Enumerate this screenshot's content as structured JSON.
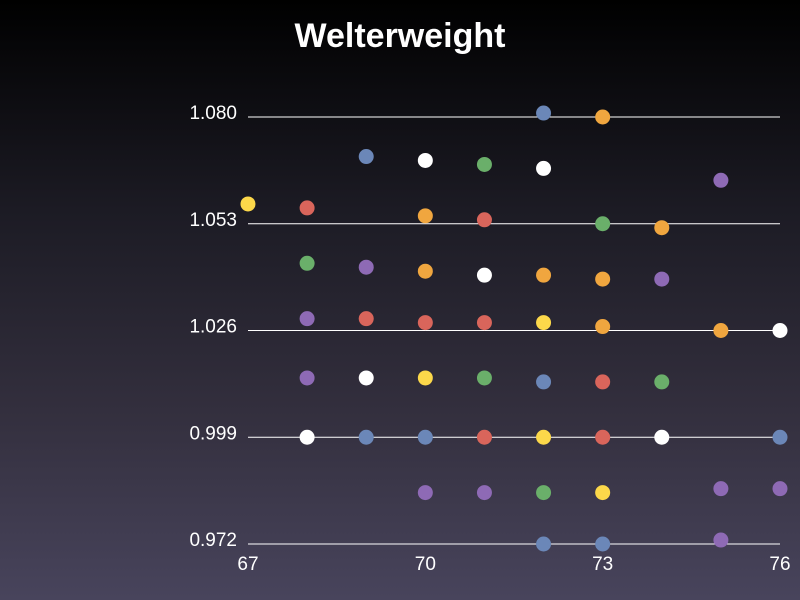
{
  "chart_data": {
    "type": "scatter",
    "title": "Welterweight",
    "xlabel": "",
    "ylabel": "",
    "xlim": [
      67,
      76
    ],
    "ylim": [
      0.972,
      1.08
    ],
    "x_ticks": [
      "67",
      "70",
      "73",
      "76"
    ],
    "y_ticks": [
      "1.080",
      "1.053",
      "1.026",
      "0.999",
      "0.972"
    ],
    "grid": "horizontal",
    "legend": "none",
    "colors": {
      "blue": "#6b87b8",
      "orange": "#f0a63f",
      "white": "#ffffff",
      "green": "#6aaf6a",
      "purple": "#8e6ab5",
      "yellow": "#fcd84a",
      "red": "#d9655b"
    },
    "points": [
      {
        "x": 72,
        "y": 1.081,
        "c": "blue"
      },
      {
        "x": 73,
        "y": 1.08,
        "c": "orange"
      },
      {
        "x": 69,
        "y": 1.07,
        "c": "blue"
      },
      {
        "x": 70,
        "y": 1.069,
        "c": "white"
      },
      {
        "x": 71,
        "y": 1.068,
        "c": "green"
      },
      {
        "x": 72,
        "y": 1.067,
        "c": "white"
      },
      {
        "x": 75,
        "y": 1.064,
        "c": "purple"
      },
      {
        "x": 67,
        "y": 1.058,
        "c": "yellow"
      },
      {
        "x": 68,
        "y": 1.057,
        "c": "red"
      },
      {
        "x": 70,
        "y": 1.055,
        "c": "orange"
      },
      {
        "x": 71,
        "y": 1.054,
        "c": "red"
      },
      {
        "x": 73,
        "y": 1.053,
        "c": "green"
      },
      {
        "x": 74,
        "y": 1.052,
        "c": "orange"
      },
      {
        "x": 68,
        "y": 1.043,
        "c": "green"
      },
      {
        "x": 69,
        "y": 1.042,
        "c": "purple"
      },
      {
        "x": 70,
        "y": 1.041,
        "c": "orange"
      },
      {
        "x": 71,
        "y": 1.04,
        "c": "white"
      },
      {
        "x": 72,
        "y": 1.04,
        "c": "orange"
      },
      {
        "x": 73,
        "y": 1.039,
        "c": "orange"
      },
      {
        "x": 74,
        "y": 1.039,
        "c": "purple"
      },
      {
        "x": 68,
        "y": 1.029,
        "c": "purple"
      },
      {
        "x": 69,
        "y": 1.029,
        "c": "red"
      },
      {
        "x": 70,
        "y": 1.028,
        "c": "red"
      },
      {
        "x": 71,
        "y": 1.028,
        "c": "red"
      },
      {
        "x": 72,
        "y": 1.028,
        "c": "yellow"
      },
      {
        "x": 73,
        "y": 1.027,
        "c": "orange"
      },
      {
        "x": 75,
        "y": 1.026,
        "c": "orange"
      },
      {
        "x": 76,
        "y": 1.026,
        "c": "white"
      },
      {
        "x": 68,
        "y": 1.014,
        "c": "purple"
      },
      {
        "x": 69,
        "y": 1.014,
        "c": "white"
      },
      {
        "x": 70,
        "y": 1.014,
        "c": "yellow"
      },
      {
        "x": 71,
        "y": 1.014,
        "c": "green"
      },
      {
        "x": 72,
        "y": 1.013,
        "c": "blue"
      },
      {
        "x": 73,
        "y": 1.013,
        "c": "red"
      },
      {
        "x": 74,
        "y": 1.013,
        "c": "green"
      },
      {
        "x": 68,
        "y": 0.999,
        "c": "white"
      },
      {
        "x": 69,
        "y": 0.999,
        "c": "blue"
      },
      {
        "x": 70,
        "y": 0.999,
        "c": "blue"
      },
      {
        "x": 71,
        "y": 0.999,
        "c": "red"
      },
      {
        "x": 72,
        "y": 0.999,
        "c": "yellow"
      },
      {
        "x": 73,
        "y": 0.999,
        "c": "red"
      },
      {
        "x": 74,
        "y": 0.999,
        "c": "white"
      },
      {
        "x": 76,
        "y": 0.999,
        "c": "blue"
      },
      {
        "x": 70,
        "y": 0.985,
        "c": "purple"
      },
      {
        "x": 71,
        "y": 0.985,
        "c": "purple"
      },
      {
        "x": 72,
        "y": 0.985,
        "c": "green"
      },
      {
        "x": 73,
        "y": 0.985,
        "c": "yellow"
      },
      {
        "x": 75,
        "y": 0.986,
        "c": "purple"
      },
      {
        "x": 76,
        "y": 0.986,
        "c": "purple"
      },
      {
        "x": 72,
        "y": 0.972,
        "c": "blue"
      },
      {
        "x": 73,
        "y": 0.972,
        "c": "blue"
      },
      {
        "x": 75,
        "y": 0.973,
        "c": "purple"
      }
    ]
  }
}
